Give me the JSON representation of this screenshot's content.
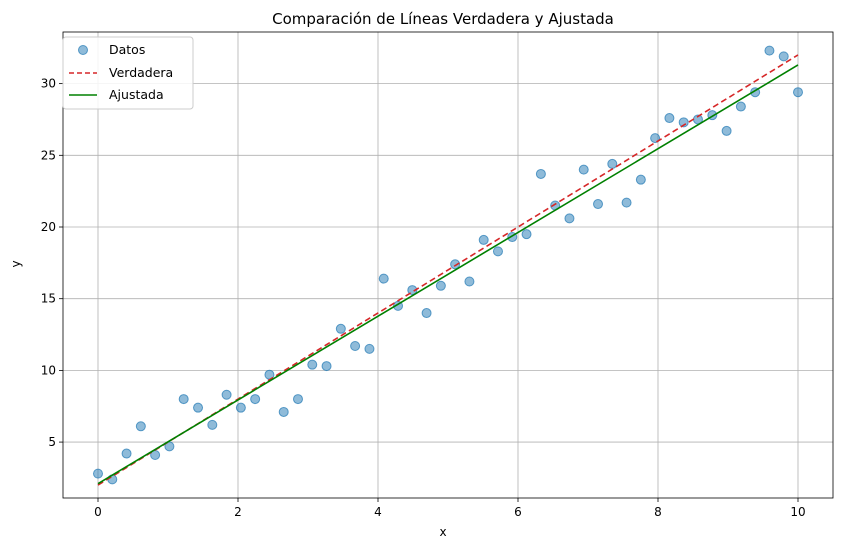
{
  "chart_data": {
    "type": "scatter",
    "title": "Comparación de Líneas Verdadera y Ajustada",
    "xlabel": "x",
    "ylabel": "y",
    "xlim": [
      -0.5,
      10.5
    ],
    "ylim": [
      1.1,
      33.6
    ],
    "xticks": [
      0,
      2,
      4,
      6,
      8,
      10
    ],
    "yticks": [
      5,
      10,
      15,
      20,
      25,
      30
    ],
    "grid": true,
    "legend_position": "top-left",
    "colors": {
      "scatter": "#1f77b4",
      "true_line": "#d62728",
      "fit_line": "#008000",
      "grid": "#b0b0b0"
    },
    "legend": [
      "Datos",
      "Verdadera",
      "Ajustada"
    ],
    "series": [
      {
        "name": "Datos",
        "kind": "scatter",
        "x": [
          0.0,
          0.204,
          0.408,
          0.612,
          0.816,
          1.02,
          1.224,
          1.429,
          1.633,
          1.837,
          2.041,
          2.245,
          2.449,
          2.653,
          2.857,
          3.061,
          3.265,
          3.469,
          3.673,
          3.878,
          4.082,
          4.286,
          4.49,
          4.694,
          4.898,
          5.102,
          5.306,
          5.51,
          5.714,
          5.918,
          6.122,
          6.327,
          6.531,
          6.735,
          6.939,
          7.143,
          7.347,
          7.551,
          7.755,
          7.959,
          8.163,
          8.367,
          8.571,
          8.776,
          8.98,
          9.184,
          9.388,
          9.592,
          9.796,
          10.0
        ],
        "y": [
          2.8,
          2.4,
          4.2,
          6.1,
          4.1,
          4.7,
          8.0,
          7.4,
          6.2,
          8.3,
          7.4,
          8.0,
          9.7,
          7.1,
          8.0,
          10.4,
          10.3,
          12.9,
          11.7,
          11.5,
          16.4,
          14.5,
          15.6,
          14.0,
          15.9,
          17.4,
          16.2,
          19.1,
          18.3,
          19.3,
          19.5,
          23.7,
          21.5,
          20.6,
          24.0,
          21.6,
          24.4,
          21.7,
          23.3,
          26.2,
          27.6,
          27.3,
          27.5,
          27.8,
          26.7,
          28.4,
          29.4,
          32.3,
          31.9,
          29.4
        ]
      },
      {
        "name": "Verdadera",
        "kind": "line",
        "style": "dashed",
        "x": [
          0,
          10
        ],
        "y": [
          2.0,
          32.0
        ]
      },
      {
        "name": "Ajustada",
        "kind": "line",
        "style": "solid",
        "x": [
          0,
          10
        ],
        "y": [
          2.1,
          31.3
        ]
      }
    ]
  }
}
